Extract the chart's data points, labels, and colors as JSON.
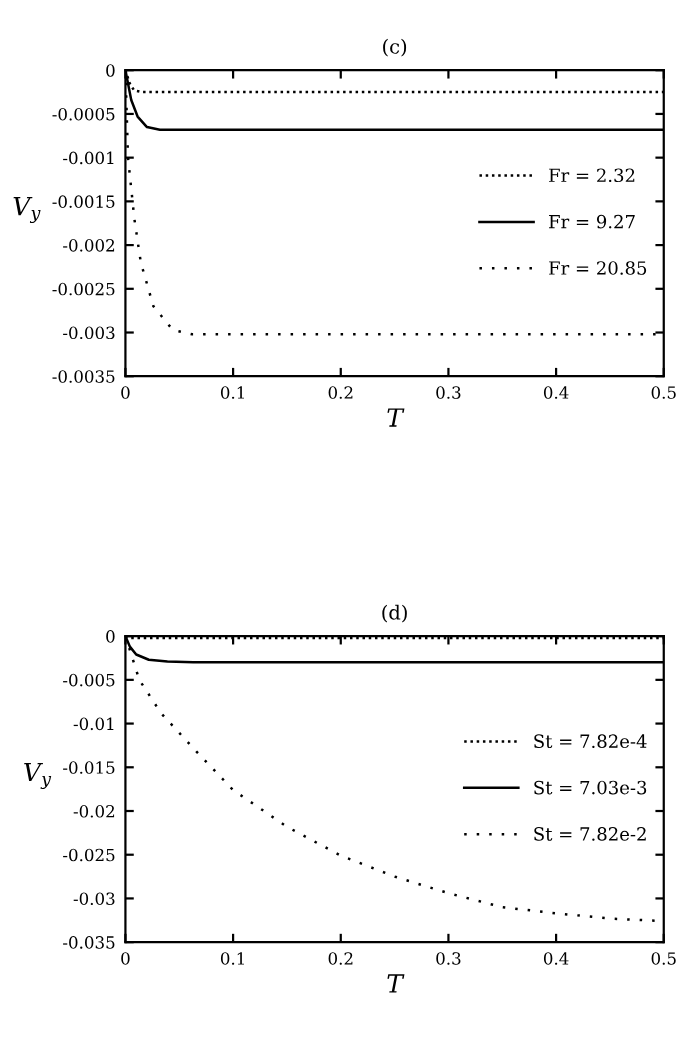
{
  "chart_data": [
    {
      "type": "line",
      "title": "(c)",
      "xlabel": "T",
      "ylabel": "V$_{y}$",
      "xlim": [
        0,
        0.5
      ],
      "ylim": [
        -0.0035,
        0
      ],
      "xticks": [
        0,
        0.1,
        0.2,
        0.3,
        0.4,
        0.5
      ],
      "yticks": [
        0,
        -0.0005,
        -0.001,
        -0.0015,
        -0.002,
        -0.0025,
        -0.003,
        -0.0035
      ],
      "grid": false,
      "legend": "right",
      "marker": "none",
      "series": [
        {
          "name": "Fr = 2.32",
          "color": "#000000",
          "line_style": "dotted",
          "x": [
            0,
            0.004,
            0.008,
            0.015,
            0.5
          ],
          "values": [
            0,
            -0.00015,
            -0.00023,
            -0.00025,
            -0.00025
          ]
        },
        {
          "name": "Fr = 9.27",
          "color": "#000000",
          "line_style": "solid",
          "x": [
            0,
            0.0054,
            0.0113,
            0.02,
            0.032,
            0.5
          ],
          "values": [
            0,
            -0.00034,
            -0.00053,
            -0.00065,
            -0.00068,
            -0.00068
          ]
        },
        {
          "name": "Fr = 20.85",
          "color": "#000000",
          "line_style": "dotted",
          "x": [
            0,
            0.0024,
            0.0083,
            0.0143,
            0.026,
            0.044,
            0.062,
            0.5
          ],
          "values": [
            0,
            -0.001,
            -0.0017,
            -0.0022,
            -0.0027,
            -0.00297,
            -0.00302,
            -0.00302
          ]
        }
      ]
    },
    {
      "type": "line",
      "title": "(d)",
      "xlabel": "T",
      "ylabel": "V$_{y}$",
      "xlim": [
        0,
        0.5
      ],
      "ylim": [
        -0.035,
        0
      ],
      "xticks": [
        0,
        0.1,
        0.2,
        0.3,
        0.4,
        0.5
      ],
      "yticks": [
        0,
        -0.005,
        -0.01,
        -0.015,
        -0.02,
        -0.025,
        -0.03,
        -0.035
      ],
      "grid": false,
      "legend": "right",
      "marker": "none",
      "series": [
        {
          "name": "St = 7.82e-4",
          "color": "#000000",
          "line_style": "dotted",
          "x": [
            0,
            0.003,
            0.5
          ],
          "values": [
            0,
            -0.0002,
            -0.0002
          ]
        },
        {
          "name": "St = 7.03e-3",
          "color": "#000000",
          "line_style": "solid",
          "x": [
            0,
            0.0041,
            0.01,
            0.0217,
            0.039,
            0.063,
            0.5
          ],
          "values": [
            0,
            -0.0012,
            -0.0021,
            -0.0027,
            -0.0029,
            -0.003,
            -0.003
          ]
        },
        {
          "name": "St = 7.82e-2",
          "color": "#000000",
          "line_style": "dotted",
          "x": [
            0,
            0.0129,
            0.033,
            0.066,
            0.1,
            0.15,
            0.2,
            0.25,
            0.3,
            0.35,
            0.4,
            0.45,
            0.5
          ],
          "values": [
            0,
            -0.005,
            -0.0088,
            -0.0132,
            -0.0176,
            -0.0218,
            -0.0251,
            -0.0275,
            -0.0294,
            -0.031,
            -0.0317,
            -0.0323,
            -0.0326
          ]
        }
      ]
    }
  ]
}
